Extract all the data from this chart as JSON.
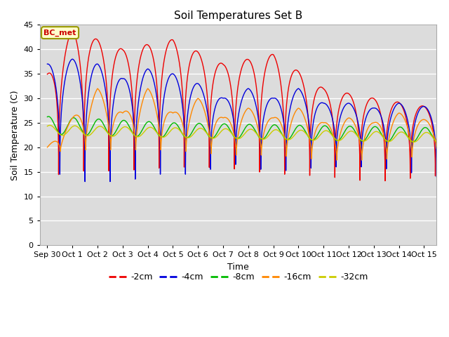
{
  "title": "Soil Temperatures Set B",
  "xlabel": "Time",
  "ylabel": "Soil Temperature (C)",
  "annotation_text": "BC_met",
  "ylim": [
    0,
    45
  ],
  "xlim_days": [
    -0.3,
    15.5
  ],
  "background_color": "#dcdcdc",
  "figure_background": "#ffffff",
  "series": [
    {
      "label": "-2cm",
      "color": "#ee0000"
    },
    {
      "label": "-4cm",
      "color": "#0000dd"
    },
    {
      "label": "-8cm",
      "color": "#00bb00"
    },
    {
      "label": "-16cm",
      "color": "#ff8800"
    },
    {
      "label": "-32cm",
      "color": "#cccc00"
    }
  ],
  "xtick_labels": [
    "Sep 30",
    "Oct 1",
    "Oct 2",
    "Oct 3",
    "Oct 4",
    "Oct 5",
    "Oct 6",
    "Oct 7",
    "Oct 8",
    "Oct 9",
    "Oct 10",
    "Oct 11",
    "Oct 12",
    "Oct 13",
    "Oct 14",
    "Oct 15"
  ],
  "xtick_positions": [
    0,
    1,
    2,
    3,
    4,
    5,
    6,
    7,
    8,
    9,
    10,
    11,
    12,
    13,
    14,
    15
  ]
}
